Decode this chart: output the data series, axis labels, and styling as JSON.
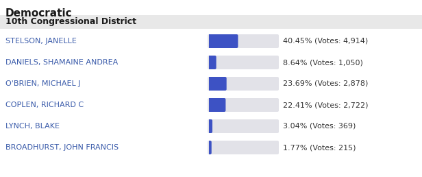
{
  "title": "Democratic",
  "subtitle": "10th Congressional District",
  "candidates": [
    "STELSON, JANELLE",
    "DANIELS, SHAMAINE ANDREA",
    "O'BRIEN, MICHAEL J",
    "COPLEN, RICHARD C",
    "LYNCH, BLAKE",
    "BROADHURST, JOHN FRANCIS"
  ],
  "percentages": [
    40.45,
    8.64,
    23.69,
    22.41,
    3.04,
    1.77
  ],
  "vote_labels": [
    "4,914",
    "1,050",
    "2,878",
    "2,722",
    "369",
    "215"
  ],
  "bar_filled_color": "#3d52c4",
  "bar_bg_color": "#e2e2e8",
  "title_color": "#1a1a1a",
  "subtitle_bg": "#e8e8e8",
  "candidate_color": "#3a5baa",
  "result_color": "#333333",
  "bg_color": "#ffffff",
  "title_fontsize": 11,
  "subtitle_fontsize": 9,
  "candidate_fontsize": 8,
  "result_fontsize": 8
}
